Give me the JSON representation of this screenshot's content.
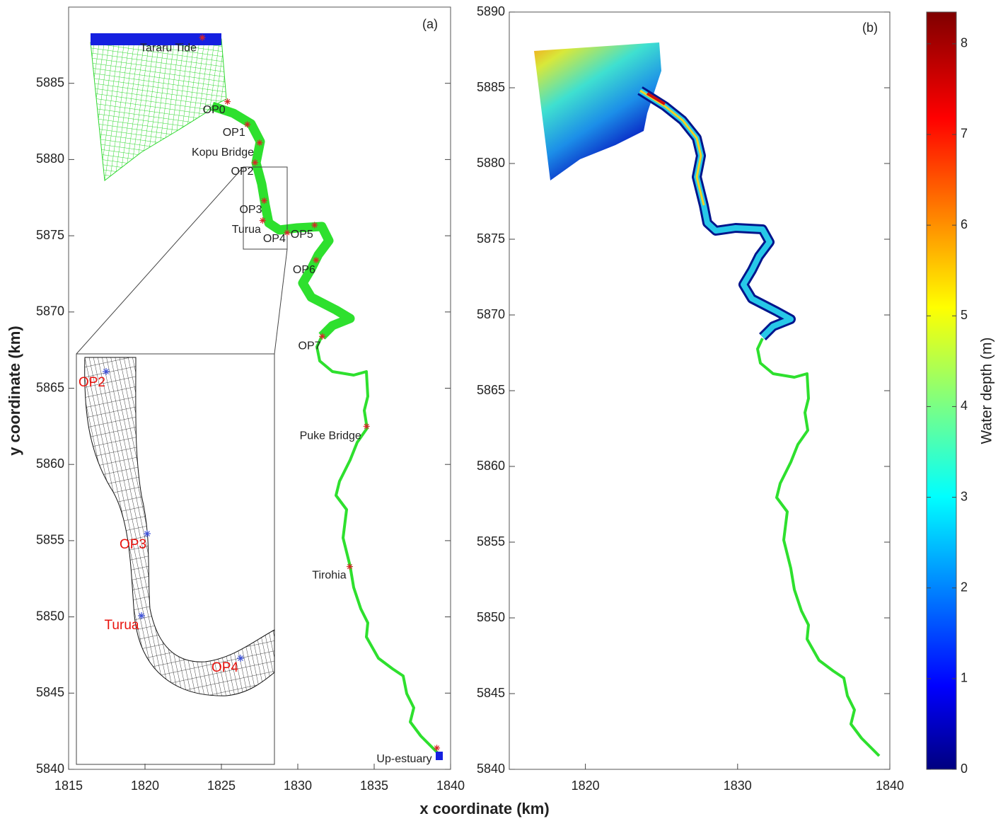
{
  "chart_data": [
    {
      "type": "scatter",
      "panel_label": "(a)",
      "xlabel": "x coordinate (km)",
      "ylabel": "y coordinate (km)",
      "xlim": [
        1815,
        1840
      ],
      "ylim": [
        5840,
        5890
      ],
      "xticks": [
        1815,
        1820,
        1825,
        1830,
        1835,
        1840
      ],
      "yticks": [
        5840,
        5845,
        5850,
        5855,
        5860,
        5865,
        5870,
        5875,
        5880,
        5885
      ],
      "point_labels": [
        "Tararu Tide",
        "OP0",
        "OP1",
        "Kopu Bridge",
        "OP2",
        "OP3",
        "Turua",
        "OP4",
        "OP5",
        "OP6",
        "OP7",
        "Puke Bridge",
        "Tirohia",
        "Up-estuary"
      ],
      "x": [
        1823.75,
        1825.4,
        1826.7,
        1827.5,
        1827.2,
        1827.8,
        1827.7,
        1829.3,
        1831.1,
        1831.2,
        1831.6,
        1834.5,
        1833.4,
        1839.1
      ],
      "y": [
        5888.0,
        5883.8,
        5882.3,
        5881.1,
        5879.8,
        5877.3,
        5876.0,
        5875.2,
        5875.7,
        5873.4,
        5868.4,
        5862.5,
        5853.3,
        5841.4
      ],
      "color": "#d62728",
      "inset": {
        "labels": [
          "OP2",
          "OP3",
          "Turua",
          "OP4"
        ],
        "color": "#e8120c",
        "marker_color": "#3b4fd8"
      }
    },
    {
      "type": "depth_map",
      "panel_label": "(b)",
      "xlim": [
        1815,
        1840
      ],
      "ylim": [
        5840,
        5890
      ],
      "xticks": [
        1820,
        1830,
        1840
      ],
      "yticks": [
        5840,
        5845,
        5850,
        5855,
        5860,
        5865,
        5870,
        5875,
        5880,
        5885,
        5890
      ],
      "colorbar": {
        "label": "Water depth (m)",
        "lim": [
          0,
          8.35
        ],
        "ticks": [
          0,
          1,
          2,
          3,
          4,
          5,
          6,
          7,
          8
        ]
      }
    }
  ]
}
